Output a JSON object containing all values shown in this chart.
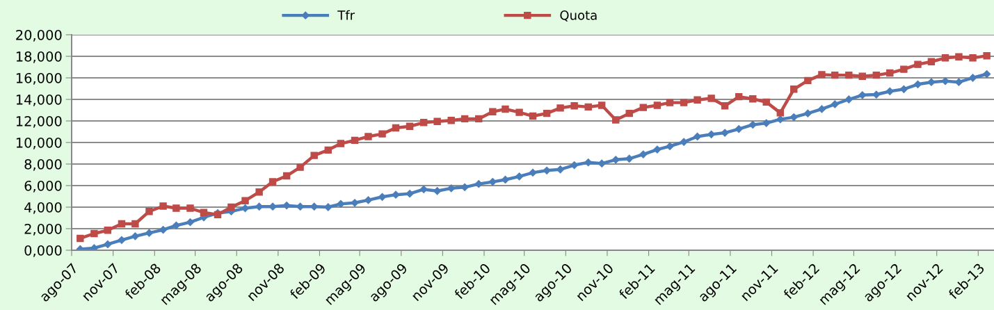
{
  "chart_data": {
    "type": "line",
    "x": [
      "2007-08-20",
      "2007-09-20",
      "2007-10-20",
      "2007-11-20",
      "2007-12-20",
      "2008-01-20",
      "2008-02-20",
      "2008-03-20",
      "2008-04-20",
      "2008-05-20",
      "2008-06-20",
      "2008-07-20",
      "2008-08-20",
      "2008-09-20",
      "2008-10-20",
      "2008-11-20",
      "2008-12-20",
      "2009-01-20",
      "2009-02-20",
      "2009-03-20",
      "2009-04-20",
      "2009-05-20",
      "2009-06-20",
      "2009-07-20",
      "2009-08-20",
      "2009-09-20",
      "2009-10-20",
      "2009-11-20",
      "2009-12-20",
      "2010-01-20",
      "2010-02-20",
      "2010-03-20",
      "2010-04-20",
      "2010-05-20",
      "2010-06-20",
      "2010-07-20",
      "2010-08-20",
      "2010-09-20",
      "2010-10-20",
      "2010-11-20",
      "2010-12-20",
      "2011-01-20",
      "2011-02-20",
      "2011-03-20",
      "2011-04-20",
      "2011-05-20",
      "2011-06-20",
      "2011-07-20",
      "2011-08-20",
      "2011-09-20",
      "2011-10-20",
      "2011-11-20",
      "2011-12-20",
      "2012-01-20",
      "2012-02-20",
      "2012-03-20",
      "2012-04-20",
      "2012-05-20",
      "2012-06-20",
      "2012-07-20",
      "2012-08-20",
      "2012-09-20",
      "2012-10-20",
      "2012-11-20",
      "2012-12-20",
      "2013-01-20",
      "2013-02-20"
    ],
    "series": [
      {
        "name": "Tfr",
        "color": "#4a7ebb",
        "marker": "diamond",
        "values": [
          100,
          200,
          550,
          950,
          1300,
          1600,
          1900,
          2300,
          2600,
          3050,
          3450,
          3600,
          3900,
          4050,
          4050,
          4150,
          4050,
          4050,
          4000,
          4300,
          4400,
          4650,
          4950,
          5150,
          5250,
          5650,
          5500,
          5750,
          5850,
          6150,
          6350,
          6550,
          6850,
          7200,
          7400,
          7500,
          7900,
          8150,
          8050,
          8400,
          8500,
          8900,
          9350,
          9650,
          10050,
          10550,
          10750,
          10900,
          11250,
          11650,
          11800,
          12150,
          12350,
          12700,
          13100,
          13550,
          14000,
          14400,
          14450,
          14750,
          14950,
          15400,
          15600,
          15700,
          15600,
          16000,
          16350
        ]
      },
      {
        "name": "Quota",
        "color": "#be4b48",
        "marker": "square",
        "values": [
          1100,
          1550,
          1850,
          2450,
          2450,
          3600,
          4100,
          3900,
          3900,
          3500,
          3300,
          4000,
          4600,
          5400,
          6350,
          6900,
          7700,
          8800,
          9300,
          9900,
          10200,
          10550,
          10800,
          11350,
          11500,
          11850,
          11950,
          12050,
          12200,
          12200,
          12850,
          13100,
          12800,
          12450,
          12700,
          13200,
          13400,
          13300,
          13450,
          12100,
          12700,
          13250,
          13450,
          13700,
          13700,
          13950,
          14100,
          13400,
          14250,
          14050,
          13750,
          12750,
          14950,
          15750,
          16300,
          16250,
          16250,
          16150,
          16250,
          16450,
          16800,
          17250,
          17500,
          17850,
          17950,
          17850,
          18050
        ]
      }
    ],
    "xlim": [
      "2007-08-01",
      "2013-03-08"
    ],
    "xticks": [
      {
        "value": "2007-08-01",
        "label": "ago-07"
      },
      {
        "value": "2007-11-01",
        "label": "nov-07"
      },
      {
        "value": "2008-02-01",
        "label": "feb-08"
      },
      {
        "value": "2008-05-01",
        "label": "mag-08"
      },
      {
        "value": "2008-08-01",
        "label": "ago-08"
      },
      {
        "value": "2008-11-01",
        "label": "nov-08"
      },
      {
        "value": "2009-02-01",
        "label": "feb-09"
      },
      {
        "value": "2009-05-01",
        "label": "mag-09"
      },
      {
        "value": "2009-08-01",
        "label": "ago-09"
      },
      {
        "value": "2009-11-01",
        "label": "nov-09"
      },
      {
        "value": "2010-02-01",
        "label": "feb-10"
      },
      {
        "value": "2010-05-01",
        "label": "mag-10"
      },
      {
        "value": "2010-08-01",
        "label": "ago-10"
      },
      {
        "value": "2010-11-01",
        "label": "nov-10"
      },
      {
        "value": "2011-02-01",
        "label": "feb-11"
      },
      {
        "value": "2011-05-01",
        "label": "mag-11"
      },
      {
        "value": "2011-08-01",
        "label": "ago-11"
      },
      {
        "value": "2011-11-01",
        "label": "nov-11"
      },
      {
        "value": "2012-02-01",
        "label": "feb-12"
      },
      {
        "value": "2012-05-01",
        "label": "mag-12"
      },
      {
        "value": "2012-08-01",
        "label": "ago-12"
      },
      {
        "value": "2012-11-01",
        "label": "nov-12"
      },
      {
        "value": "2013-02-01",
        "label": "feb-13"
      }
    ],
    "ylim": [
      0,
      20000
    ],
    "yticks": [
      {
        "value": 0,
        "label": "0,000"
      },
      {
        "value": 2000,
        "label": "2,000"
      },
      {
        "value": 4000,
        "label": "4,000"
      },
      {
        "value": 6000,
        "label": "6,000"
      },
      {
        "value": 8000,
        "label": "8,000"
      },
      {
        "value": 10000,
        "label": "10,000"
      },
      {
        "value": 12000,
        "label": "12,000"
      },
      {
        "value": 14000,
        "label": "14,000"
      },
      {
        "value": 16000,
        "label": "16,000"
      },
      {
        "value": 18000,
        "label": "18,000"
      },
      {
        "value": 20000,
        "label": "20,000"
      }
    ],
    "grid": "y",
    "legend": "top"
  }
}
